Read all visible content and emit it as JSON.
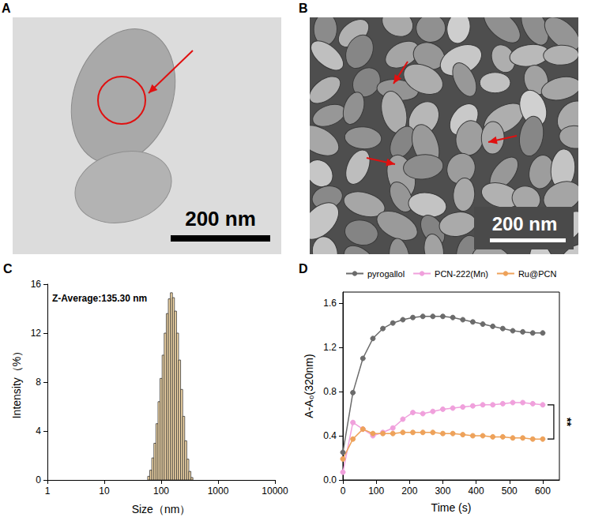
{
  "images": [
    {
      "letter": "A",
      "scale_bar": "200 nm"
    },
    {
      "letter": "B",
      "scale_bar": "200 nm"
    }
  ],
  "chart_data": [
    {
      "letter": "C",
      "type": "histogram",
      "xlabel": "Size（nm）",
      "ylabel": "Intensity（%）",
      "annotation": "Z-Average:135.30 nm",
      "log": "x",
      "color": "#f8dcaa",
      "bins": [
        58,
        63,
        68.5,
        74.5,
        81,
        88,
        95.5,
        104,
        113,
        123,
        133.5,
        145,
        157.5,
        171,
        186,
        202,
        219.5,
        238.5,
        259,
        281.5,
        306,
        332.5,
        361
      ],
      "counts": [
        0.3,
        0.8,
        1.8,
        3.0,
        4.6,
        6.4,
        8.3,
        10.2,
        12.0,
        13.6,
        14.8,
        15.3,
        14.9,
        13.8,
        12.0,
        9.8,
        7.4,
        5.2,
        3.2,
        1.7,
        0.7,
        0.2
      ],
      "xlim": [
        1,
        10000
      ],
      "xticks": [
        1,
        10,
        100,
        1000,
        10000
      ],
      "ylim": [
        0,
        16
      ],
      "yticks": [
        0,
        4,
        8,
        12,
        16
      ],
      "grid": false
    },
    {
      "letter": "D",
      "type": "line",
      "xlabel": "Time (s)",
      "ylabel": "A-A₀(320nm)",
      "annotation": "**",
      "marker": "circle",
      "legend": "top",
      "grid": false,
      "x": [
        0,
        30,
        60,
        90,
        120,
        150,
        180,
        210,
        240,
        270,
        300,
        330,
        360,
        390,
        420,
        450,
        480,
        510,
        540,
        570,
        600
      ],
      "series": [
        {
          "name": "pyrogallol",
          "color": "#6b6b6b",
          "values": [
            0.25,
            0.79,
            1.1,
            1.28,
            1.37,
            1.42,
            1.45,
            1.47,
            1.48,
            1.48,
            1.48,
            1.47,
            1.45,
            1.43,
            1.41,
            1.39,
            1.37,
            1.35,
            1.34,
            1.33,
            1.33
          ]
        },
        {
          "name": "PCN-222(Mn)",
          "color": "#f0a0dc",
          "values": [
            0.07,
            0.52,
            0.46,
            0.4,
            0.43,
            0.47,
            0.55,
            0.61,
            0.6,
            0.62,
            0.64,
            0.65,
            0.66,
            0.67,
            0.68,
            0.68,
            0.69,
            0.7,
            0.7,
            0.69,
            0.68
          ]
        },
        {
          "name": "Ru@PCN",
          "color": "#eea25a",
          "values": [
            0.19,
            0.37,
            0.46,
            0.42,
            0.42,
            0.42,
            0.43,
            0.43,
            0.43,
            0.43,
            0.42,
            0.42,
            0.41,
            0.4,
            0.4,
            0.39,
            0.39,
            0.38,
            0.38,
            0.37,
            0.37
          ]
        }
      ],
      "xlim": [
        0,
        650
      ],
      "xticks": [
        0,
        100,
        200,
        300,
        400,
        500,
        600
      ],
      "ylim": [
        0,
        1.7
      ],
      "yticks": [
        {
          "value": 0,
          "label": "0.0"
        },
        {
          "value": 0.4,
          "label": "0.4"
        },
        {
          "value": 0.8,
          "label": "0.8"
        },
        {
          "value": 1.2,
          "label": "1.2"
        },
        {
          "value": 1.6,
          "label": "1.6"
        }
      ]
    }
  ]
}
